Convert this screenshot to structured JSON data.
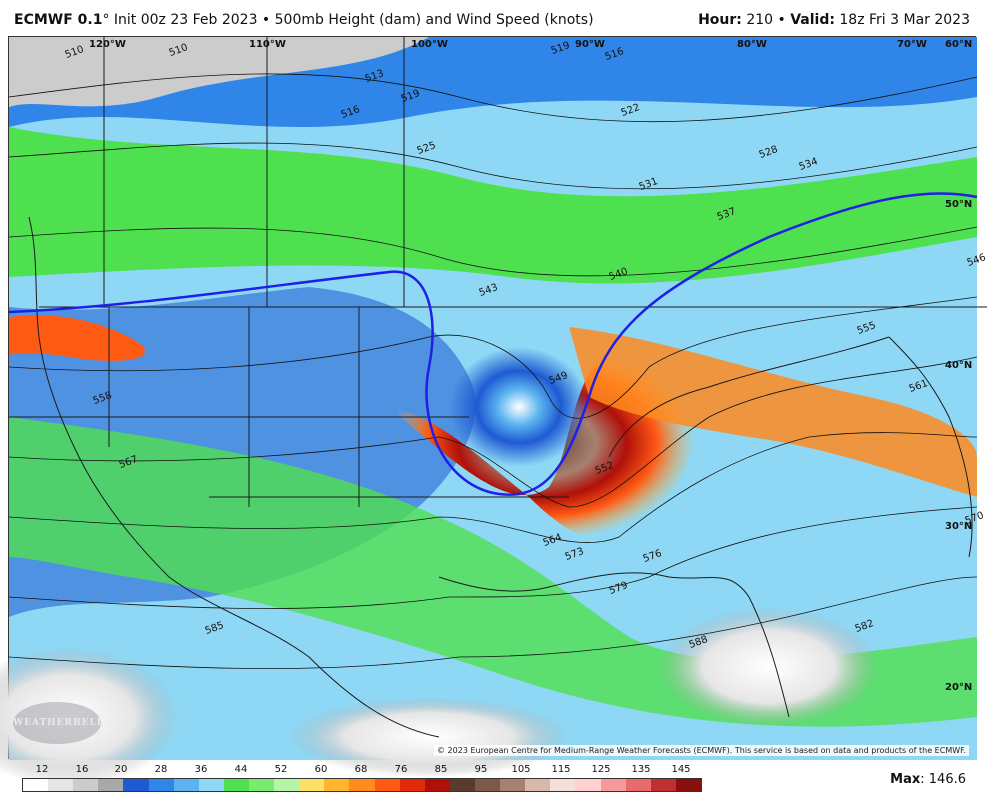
{
  "header": {
    "model": "ECMWF 0.1",
    "deg": "°",
    "init": " Init 00z 23 Feb 2023 • 500mb Height (dam) and Wind Speed (knots)",
    "hour_label": "Hour:",
    "hour_value": " 210 • ",
    "valid_label": "Valid:",
    "valid_value": " 18z Fri 3 Mar 2023"
  },
  "map": {
    "lon_labels": [
      "120°W",
      "110°W",
      "100°W",
      "90°W",
      "80°W",
      "70°W",
      "60°N"
    ],
    "lat_labels": [
      "50°N",
      "40°N",
      "30°N",
      "20°N"
    ],
    "contour_labels": [
      "510",
      "510",
      "513",
      "516",
      "519",
      "519",
      "516",
      "522",
      "525",
      "528",
      "531",
      "534",
      "537",
      "540",
      "543",
      "546",
      "549",
      "552",
      "555",
      "558",
      "561",
      "564",
      "567",
      "570",
      "573",
      "576",
      "579",
      "582",
      "585",
      "588"
    ],
    "copyright": "© 2023 European Centre for Medium-Range Weather Forecasts (ECMWF). This service is based on data and products of the ECMWF.",
    "logo": "WEATHERBELL",
    "colors": {
      "land_line": "#1a1a1a",
      "height_contour": "#111111",
      "h540_contour": "#1f1fe6"
    }
  },
  "legend": {
    "ticks": [
      "12",
      "16",
      "20",
      "28",
      "36",
      "44",
      "52",
      "60",
      "68",
      "76",
      "85",
      "95",
      "105",
      "115",
      "125",
      "135",
      "145"
    ],
    "colors": [
      "#ffffff",
      "#e6e6e6",
      "#cccccc",
      "#a8a8a8",
      "#1e5ad2",
      "#2f86e8",
      "#5bb3f0",
      "#8fd8f5",
      "#4fe04f",
      "#7aeb6f",
      "#b4f5a8",
      "#ffe066",
      "#ffb52e",
      "#ff8a1e",
      "#ff5a14",
      "#e02a0a",
      "#b0100a",
      "#5a3a2a",
      "#7b5a4a",
      "#a88070",
      "#d8b8a8",
      "#f4e0d8",
      "#ffd0d0",
      "#f59a9a",
      "#e86a6a",
      "#c03030",
      "#8a1010"
    ]
  },
  "max": {
    "label": "Max",
    "value": ": 146.6"
  }
}
